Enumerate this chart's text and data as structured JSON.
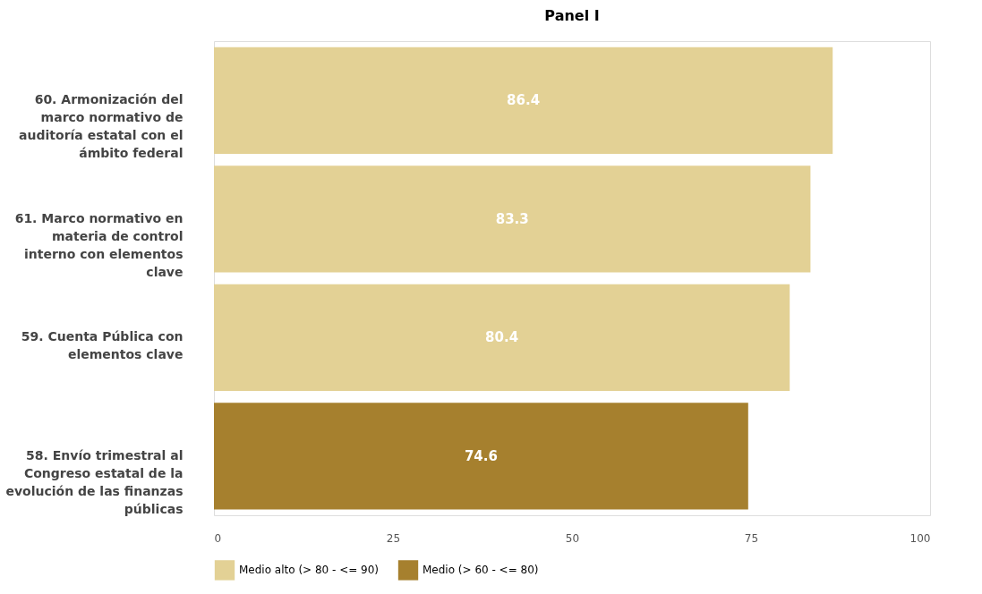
{
  "chart_data": {
    "type": "bar",
    "orientation": "horizontal",
    "title": "Panel I",
    "categories": [
      "60. Armonización del marco normativo de auditoría estatal con el ámbito federal",
      "61. Marco normativo en materia de control interno con elementos clave",
      "59. Cuenta Pública con elementos clave",
      "58. Envío trimestral al Congreso estatal de la evolución de las finanzas públicas"
    ],
    "series": [
      {
        "name": "Medio alto (> 80 - <= 90)",
        "color": "#e3d195",
        "values": [
          86.4,
          83.3,
          80.4,
          null
        ]
      },
      {
        "name": "Medio (> 60 - <= 80)",
        "color": "#a6802e",
        "values": [
          null,
          null,
          null,
          74.6
        ]
      }
    ],
    "xlim": [
      0,
      100
    ],
    "xticks": [
      0,
      25,
      50,
      75,
      100
    ],
    "grid": false,
    "legend": "bottom",
    "data_labels": true
  }
}
